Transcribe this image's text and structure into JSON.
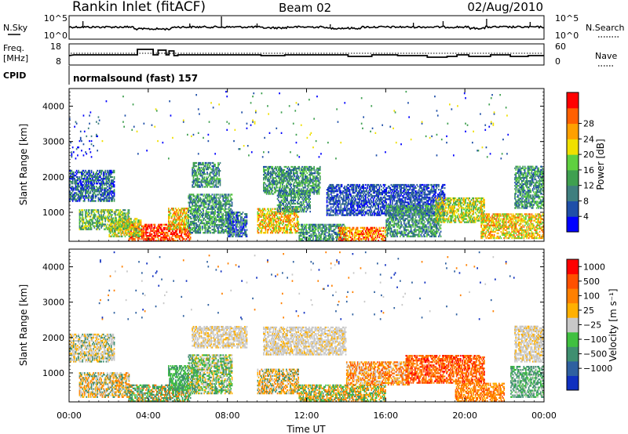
{
  "header": {
    "station": "Rankin Inlet (fitACF)",
    "beam": "Beam 02",
    "date": "02/Aug/2010"
  },
  "noise_panel": {
    "left_label": "N.Sky",
    "right_label": "N.Search",
    "left_ticks": [
      "10^5",
      "10^0"
    ],
    "right_ticks": [
      "10^5",
      "10^0"
    ]
  },
  "freq_panel": {
    "left_label_1": "Freq.",
    "left_label_2": "[MHz]",
    "right_label": "Nave",
    "left_ticks": [
      "18",
      "8"
    ],
    "right_ticks": [
      "60",
      "0"
    ]
  },
  "cpid_panel": {
    "label": "CPID",
    "text": "normalsound (fast)  157"
  },
  "colors": {
    "power_scale": [
      "#0000ff",
      "#1f4fa8",
      "#3f7f7f",
      "#3fa050",
      "#5fd040",
      "#f0e000",
      "#ffa000",
      "#ff6000",
      "#ff0000"
    ],
    "velocity_scale": [
      "#1030c0",
      "#2f60a0",
      "#3f8f70",
      "#40c040",
      "#c8c8c8",
      "#ffb000",
      "#ff8000",
      "#ff5000",
      "#ff0000"
    ]
  },
  "chart_data": [
    {
      "type": "heatmap",
      "name": "power",
      "ylabel": "Slant Range [km]",
      "y_ticks": [
        "1000",
        "2000",
        "3000",
        "4000"
      ],
      "ylim": [
        180,
        4500
      ],
      "x_ticks": [
        "00:00",
        "04:00",
        "08:00",
        "12:00",
        "16:00",
        "20:00",
        "00:00"
      ],
      "xlim_hours": [
        0,
        24
      ],
      "colorbar": {
        "label": "Power [dB]",
        "ticks": [
          "4",
          "8",
          "12",
          "16",
          "20",
          "24",
          "28"
        ],
        "range": [
          0,
          30
        ]
      }
    },
    {
      "type": "heatmap",
      "name": "velocity",
      "ylabel": "Slant Range [km]",
      "y_ticks": [
        "1000",
        "2000",
        "3000",
        "4000"
      ],
      "ylim": [
        180,
        4500
      ],
      "x_ticks": [
        "00:00",
        "04:00",
        "08:00",
        "12:00",
        "16:00",
        "20:00",
        "00:00"
      ],
      "xlabel": "Time UT",
      "xlim_hours": [
        0,
        24
      ],
      "colorbar": {
        "label": "Velocity [m s⁻¹]",
        "ticks": [
          "1000",
          "500",
          "100",
          "25",
          "−25",
          "−100",
          "−500",
          "−1000"
        ]
      }
    }
  ]
}
